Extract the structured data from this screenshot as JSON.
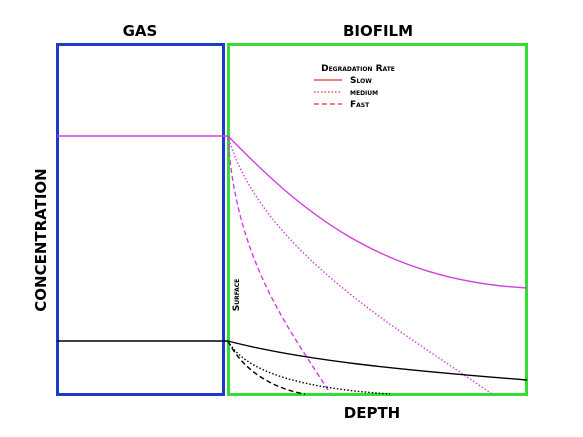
{
  "header": {
    "gas": "GAS",
    "biofilm": "BIOFILM"
  },
  "axes": {
    "y_label": "CONCENTRATION",
    "x_label": "DEPTH"
  },
  "annotations": {
    "surface": "Surface"
  },
  "legend": {
    "title": "Degradation Rate",
    "items": [
      "Slow",
      "medium",
      "Fast"
    ]
  }
}
